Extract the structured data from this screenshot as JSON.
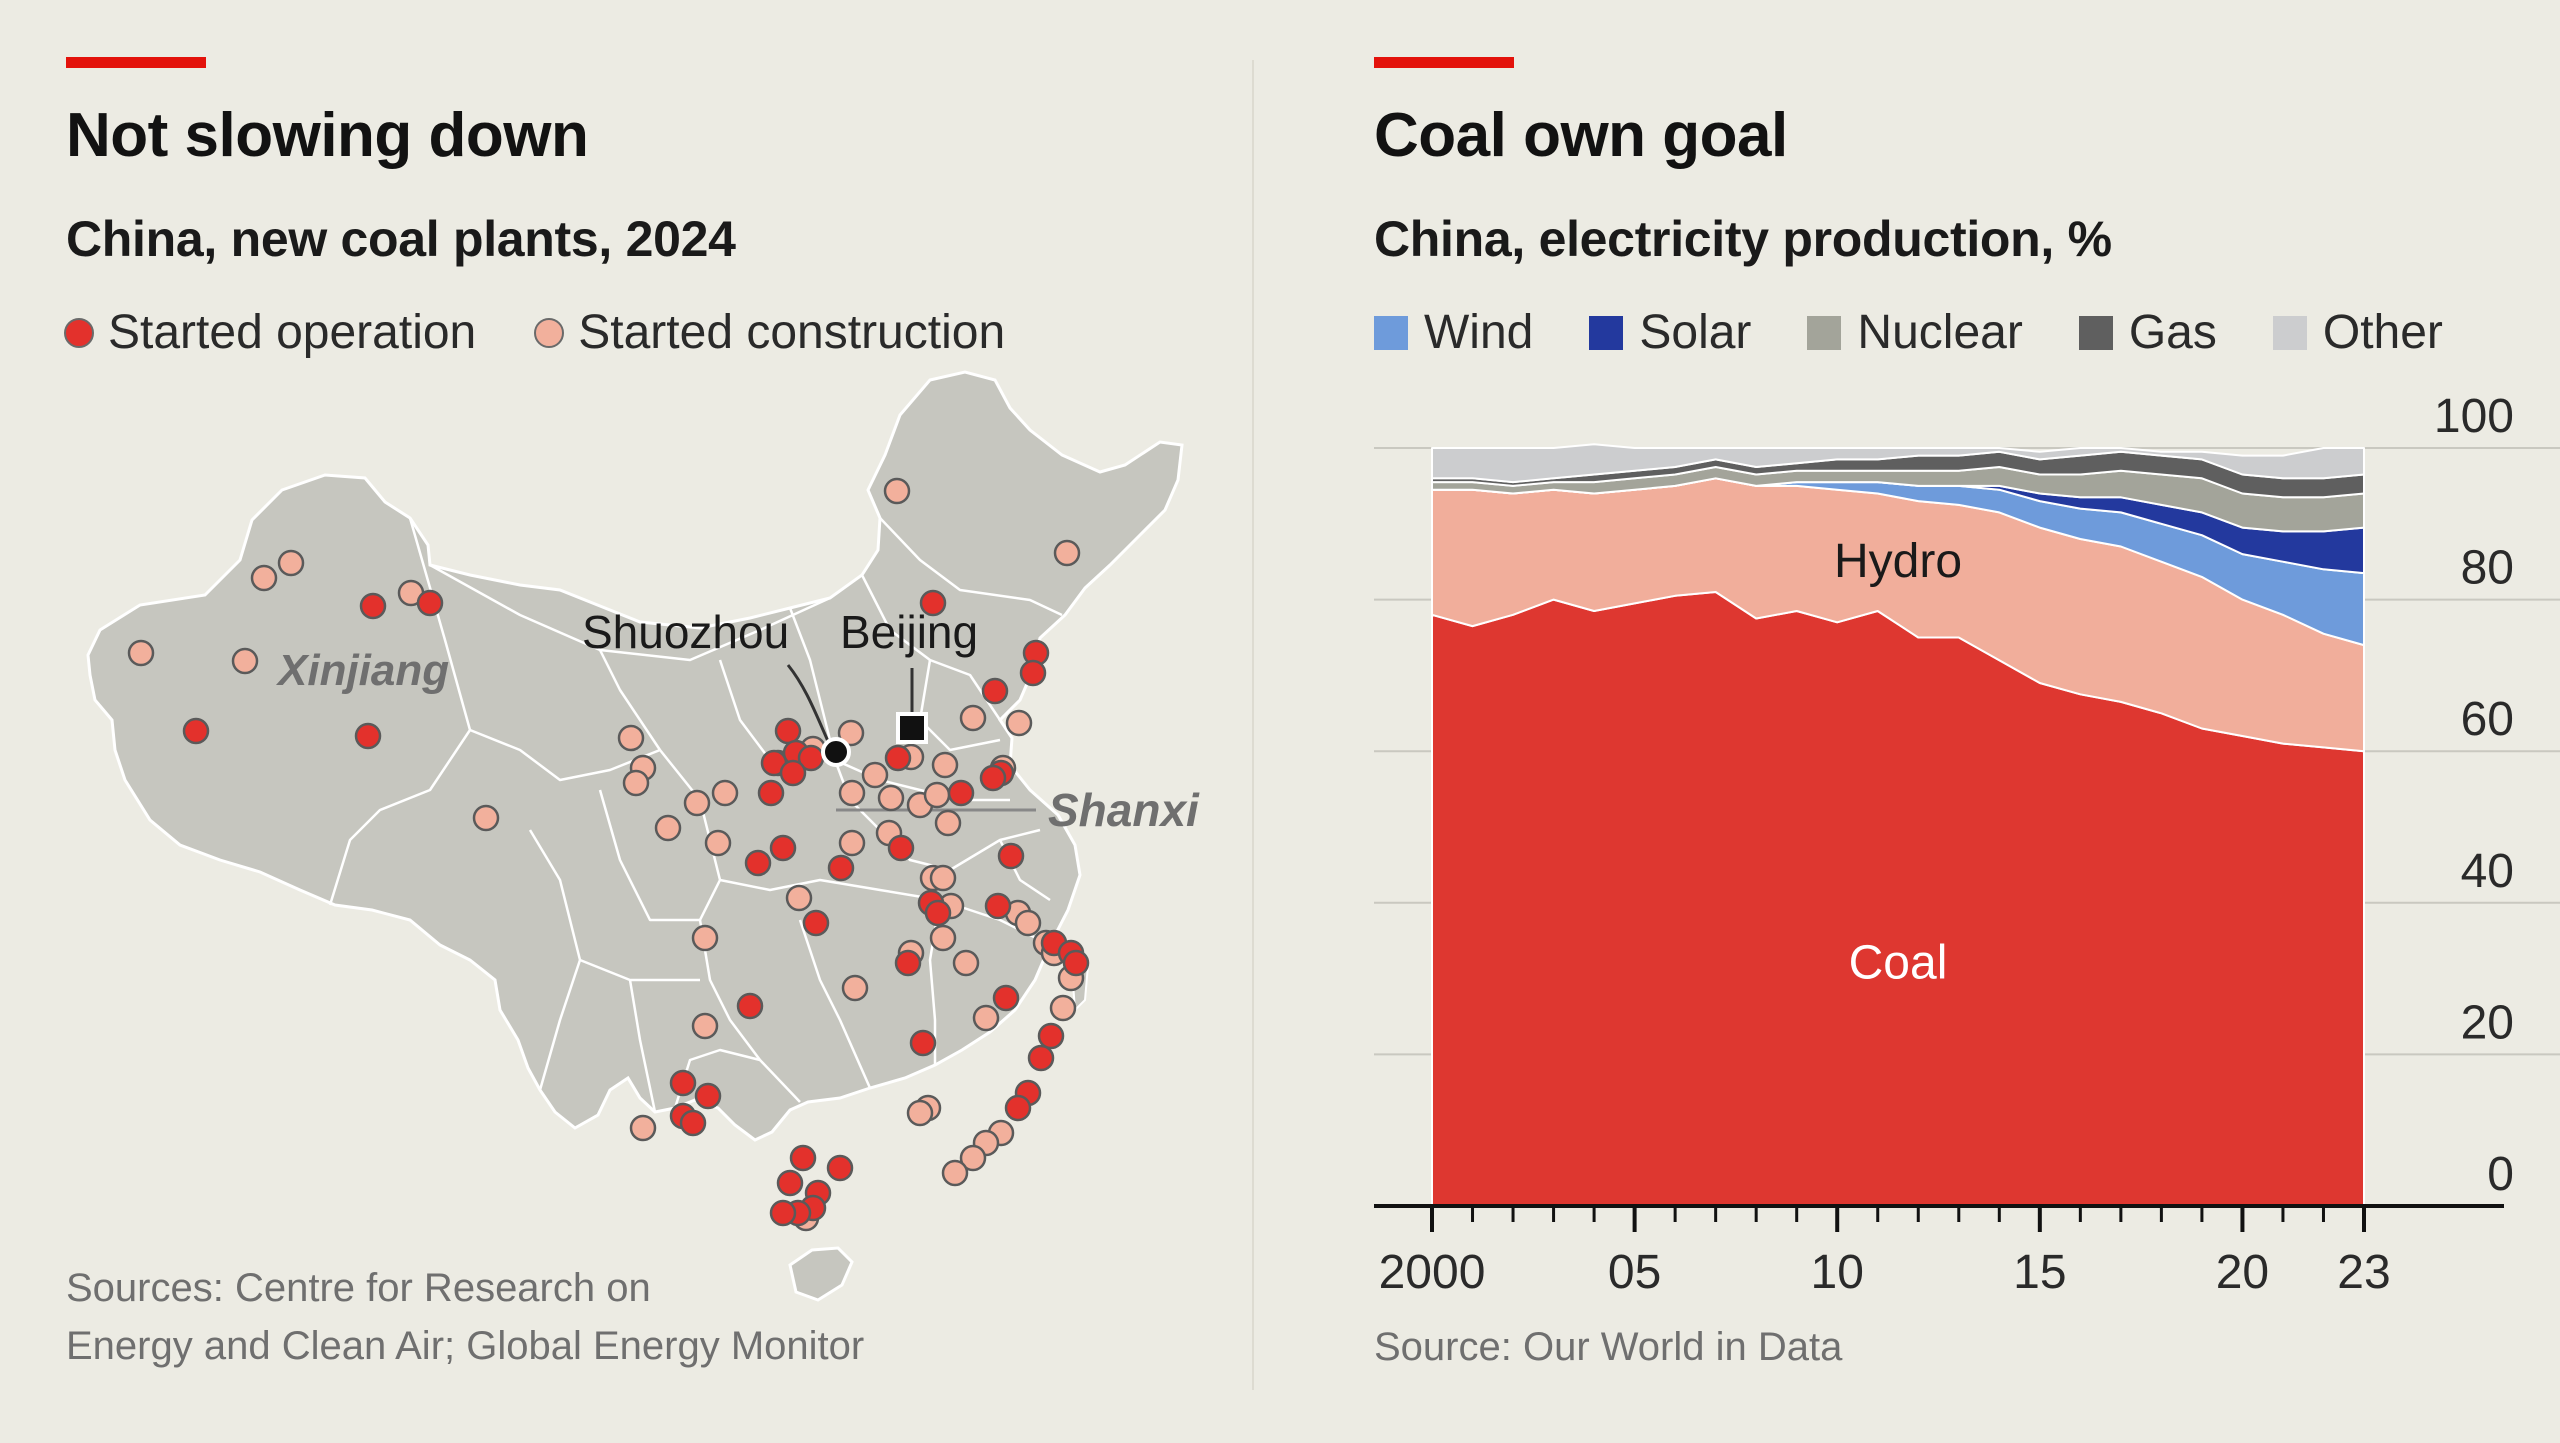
{
  "map_panel": {
    "title": "Not slowing down",
    "subtitle": "China, new coal plants, 2024",
    "legend": [
      {
        "label": "Started operation",
        "color": "#E3312C"
      },
      {
        "label": "Started construction",
        "color": "#F2B09C"
      }
    ],
    "labels": {
      "xinjiang": "Xinjiang",
      "shuozhou": "Shuozhou",
      "beijing": "Beijing",
      "shanxi": "Shanxi"
    },
    "source_line1": "Sources: Centre for Research on",
    "source_line2": "Energy and Clean Air; Global Energy Monitor"
  },
  "chart_panel": {
    "title": "Coal own goal",
    "subtitle": "China, electricity production, %",
    "legend": [
      {
        "label": "Wind",
        "color": "#6E9BDB"
      },
      {
        "label": "Solar",
        "color": "#23399E"
      },
      {
        "label": "Nuclear",
        "color": "#A3A49A"
      },
      {
        "label": "Gas",
        "color": "#5F5F5F"
      },
      {
        "label": "Other",
        "color": "#CCCDCF"
      }
    ],
    "area_labels": {
      "coal": "Coal",
      "hydro": "Hydro"
    },
    "source": "Source: Our World in Data"
  },
  "chart_data": {
    "type": "area",
    "stacked": true,
    "title": "Coal own goal",
    "subtitle": "China, electricity production, %",
    "x": [
      2000,
      2001,
      2002,
      2003,
      2004,
      2005,
      2006,
      2007,
      2008,
      2009,
      2010,
      2011,
      2012,
      2013,
      2014,
      2015,
      2016,
      2017,
      2018,
      2019,
      2020,
      2021,
      2022,
      2023
    ],
    "x_tick_values": [
      2000,
      2005,
      2010,
      2015,
      2020,
      2023
    ],
    "x_tick_labels": [
      "2000",
      "05",
      "10",
      "15",
      "20",
      "23"
    ],
    "ylim": [
      0,
      100
    ],
    "y_ticks": [
      0,
      20,
      40,
      60,
      80,
      100
    ],
    "y_axis_side": "right",
    "grid": true,
    "legend_position": "top",
    "series": [
      {
        "name": "Coal",
        "color": "#DE3730",
        "values": [
          78,
          76.5,
          78,
          80,
          78.5,
          79.5,
          80.5,
          81,
          77.5,
          78.5,
          77,
          78.5,
          75,
          75,
          72,
          69,
          67.5,
          66.5,
          65,
          63,
          62,
          61,
          60.5,
          60
        ]
      },
      {
        "name": "Hydro",
        "color": "#F1AE9B",
        "values": [
          16.5,
          18,
          16,
          14.5,
          15.5,
          15,
          14.5,
          15,
          17.5,
          16.5,
          17.5,
          15.5,
          18,
          17.5,
          19.5,
          20.5,
          20.5,
          20.5,
          20,
          20,
          18,
          17,
          15,
          14
        ]
      },
      {
        "name": "Wind",
        "color": "#6E9BDB",
        "values": [
          0,
          0,
          0,
          0,
          0,
          0,
          0,
          0,
          0,
          0.5,
          1,
          1.5,
          2,
          2.5,
          3,
          3.5,
          4,
          4.5,
          5,
          5.5,
          6,
          7,
          8.5,
          9.5
        ]
      },
      {
        "name": "Solar",
        "color": "#23399E",
        "values": [
          0,
          0,
          0,
          0,
          0,
          0,
          0,
          0,
          0,
          0,
          0,
          0,
          0,
          0,
          0.5,
          1,
          1.5,
          2,
          2.5,
          3,
          3.5,
          4,
          5,
          6
        ]
      },
      {
        "name": "Nuclear",
        "color": "#A3A49A",
        "values": [
          1,
          1,
          1,
          1,
          1.5,
          1.5,
          1.5,
          1.5,
          1.5,
          1.5,
          1.5,
          1.5,
          2,
          2,
          2.5,
          2.5,
          3,
          3.5,
          4,
          4.5,
          4.5,
          4.5,
          4.5,
          4.5
        ]
      },
      {
        "name": "Gas",
        "color": "#5F5F5F",
        "values": [
          0.5,
          0.5,
          0.5,
          0.5,
          1,
          1,
          1,
          1,
          1,
          1,
          1.5,
          1.5,
          2,
          2,
          2,
          2,
          2.5,
          2.5,
          2.5,
          2.5,
          2.5,
          2.5,
          2.5,
          2.5
        ]
      },
      {
        "name": "Other",
        "color": "#CCCDCF",
        "values": [
          4,
          4,
          4.5,
          4,
          4,
          3,
          2.5,
          1.5,
          2.5,
          2,
          1.5,
          1.5,
          1,
          1,
          0.5,
          1,
          1,
          0.5,
          0.5,
          1,
          2.5,
          3,
          4,
          3.5
        ]
      }
    ]
  }
}
